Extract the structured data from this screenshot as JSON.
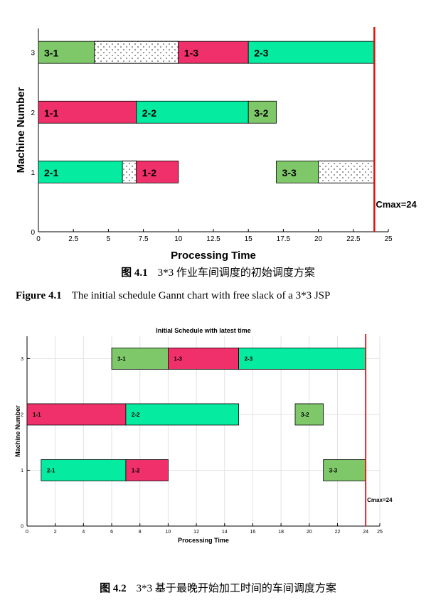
{
  "chart_data": [
    {
      "type": "gantt",
      "title": "",
      "xlabel": "Processing Time",
      "ylabel": "Machine Number",
      "xlim": [
        0,
        25
      ],
      "ylim": [
        0,
        3.4
      ],
      "xticks": [
        "0",
        "2.5",
        "5",
        "7.5",
        "10",
        "12.5",
        "15",
        "17.5",
        "20",
        "22.5",
        "25"
      ],
      "xtick_values": [
        0,
        2.5,
        5,
        7.5,
        10,
        12.5,
        15,
        17.5,
        20,
        22.5,
        25
      ],
      "yticks": [
        "0",
        "1",
        "2",
        "3"
      ],
      "ytick_values": [
        0,
        1,
        2,
        3
      ],
      "grid": false,
      "colors": {
        "job1": "#f0306a",
        "job2": "#05eba0",
        "job3": "#7ec86a",
        "slack": "#ffffff"
      },
      "tasks": [
        {
          "label": "3-1",
          "machine": 3,
          "start": 0,
          "end": 4,
          "job": 3
        },
        {
          "label": "1-3",
          "machine": 3,
          "start": 10,
          "end": 15,
          "job": 1
        },
        {
          "label": "2-3",
          "machine": 3,
          "start": 15,
          "end": 24,
          "job": 2
        },
        {
          "label": "1-1",
          "machine": 2,
          "start": 0,
          "end": 7,
          "job": 1
        },
        {
          "label": "2-2",
          "machine": 2,
          "start": 7,
          "end": 15,
          "job": 2
        },
        {
          "label": "3-2",
          "machine": 2,
          "start": 15,
          "end": 17,
          "job": 3
        },
        {
          "label": "2-1",
          "machine": 1,
          "start": 0,
          "end": 6,
          "job": 2
        },
        {
          "label": "1-2",
          "machine": 1,
          "start": 7,
          "end": 10,
          "job": 1
        },
        {
          "label": "3-3",
          "machine": 1,
          "start": 17,
          "end": 20,
          "job": 3
        }
      ],
      "slack": [
        {
          "machine": 3,
          "start": 4,
          "end": 10
        },
        {
          "machine": 1,
          "start": 6,
          "end": 7
        },
        {
          "machine": 1,
          "start": 20,
          "end": 24
        }
      ],
      "cmax": {
        "value": 24,
        "label": "Cmax=24"
      }
    },
    {
      "type": "gantt",
      "title": "Initial Schedule with latest time",
      "xlabel": "Processing Time",
      "ylabel": "Machine Number",
      "xlim": [
        0,
        25
      ],
      "ylim": [
        0,
        3.4
      ],
      "xticks": [
        "0",
        "2",
        "4",
        "6",
        "8",
        "10",
        "12",
        "14",
        "16",
        "18",
        "20",
        "22",
        "24",
        "25"
      ],
      "xtick_values": [
        0,
        2,
        4,
        6,
        8,
        10,
        12,
        14,
        16,
        18,
        20,
        22,
        24,
        25
      ],
      "yticks": [
        "0",
        "1",
        "2",
        "3"
      ],
      "ytick_values": [
        0,
        1,
        2,
        3
      ],
      "grid": true,
      "colors": {
        "job1": "#f0306a",
        "job2": "#05eba0",
        "job3": "#7ec86a"
      },
      "tasks": [
        {
          "label": "3-1",
          "machine": 3,
          "start": 6,
          "end": 10,
          "job": 3
        },
        {
          "label": "1-3",
          "machine": 3,
          "start": 10,
          "end": 15,
          "job": 1
        },
        {
          "label": "2-3",
          "machine": 3,
          "start": 15,
          "end": 24,
          "job": 2
        },
        {
          "label": "1-1",
          "machine": 2,
          "start": 0,
          "end": 7,
          "job": 1
        },
        {
          "label": "2-2",
          "machine": 2,
          "start": 7,
          "end": 15,
          "job": 2
        },
        {
          "label": "3-2",
          "machine": 2,
          "start": 19,
          "end": 21,
          "job": 3
        },
        {
          "label": "2-1",
          "machine": 1,
          "start": 1,
          "end": 7,
          "job": 2
        },
        {
          "label": "1-2",
          "machine": 1,
          "start": 7,
          "end": 10,
          "job": 1
        },
        {
          "label": "3-3",
          "machine": 1,
          "start": 21,
          "end": 24,
          "job": 3
        }
      ],
      "slack": [],
      "cmax": {
        "value": 24,
        "label": "Cmax=24"
      }
    }
  ],
  "captions": {
    "fig1_cn_num": "图 4.1",
    "fig1_cn_text": "3*3 作业车间调度的初始调度方案",
    "fig1_en_num": "Figure 4.1",
    "fig1_en_text": "The initial schedule Gannt chart with free slack of a 3*3 JSP",
    "fig2_cn_num": "图 4.2",
    "fig2_cn_text": "3*3 基于最晚开始加工时间的车间调度方案"
  }
}
